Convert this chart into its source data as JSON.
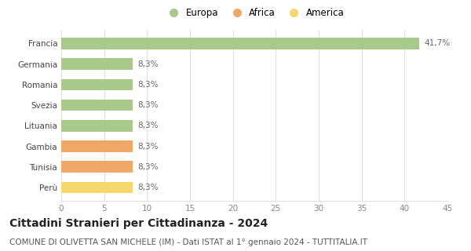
{
  "categories": [
    "Perù",
    "Tunisia",
    "Gambia",
    "Lituania",
    "Svezia",
    "Romania",
    "Germania",
    "Francia"
  ],
  "values": [
    8.3,
    8.3,
    8.3,
    8.3,
    8.3,
    8.3,
    8.3,
    41.7
  ],
  "bar_colors": [
    "#f5d76e",
    "#f0a868",
    "#f0a868",
    "#a8c98a",
    "#a8c98a",
    "#a8c98a",
    "#a8c98a",
    "#a8c98a"
  ],
  "bar_labels": [
    "8,3%",
    "8,3%",
    "8,3%",
    "8,3%",
    "8,3%",
    "8,3%",
    "8,3%",
    "41,7%"
  ],
  "xlim": [
    0,
    45
  ],
  "xticks": [
    0,
    5,
    10,
    15,
    20,
    25,
    30,
    35,
    40,
    45
  ],
  "legend_labels": [
    "Europa",
    "Africa",
    "America"
  ],
  "legend_colors": [
    "#a8c98a",
    "#f0a868",
    "#f5d76e"
  ],
  "title": "Cittadini Stranieri per Cittadinanza - 2024",
  "subtitle": "COMUNE DI OLIVETTA SAN MICHELE (IM) - Dati ISTAT al 1° gennaio 2024 - TUTTITALIA.IT",
  "title_fontsize": 10,
  "subtitle_fontsize": 7.5,
  "label_fontsize": 7.5,
  "tick_fontsize": 7.5,
  "legend_fontsize": 8.5,
  "background_color": "#ffffff",
  "grid_color": "#e0e0e0"
}
